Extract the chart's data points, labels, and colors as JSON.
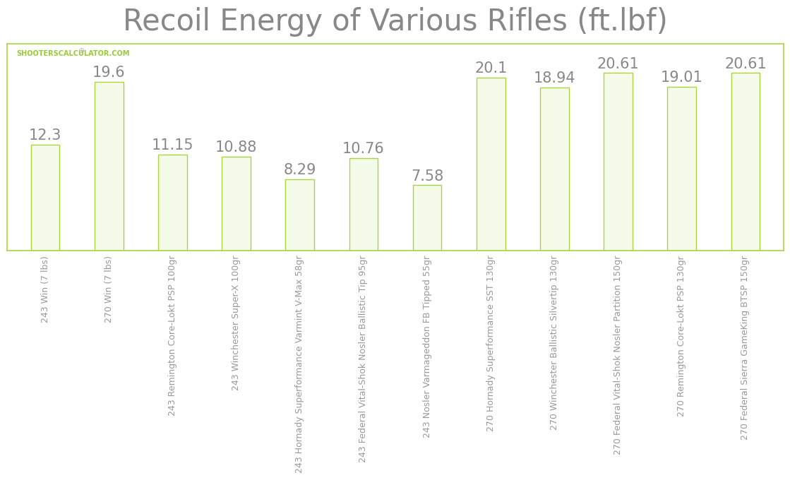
{
  "title": "Recoil Energy of Various Rifles (ft.lbf)",
  "categories": [
    "243 Win (7 lbs)",
    "270 Win (7 lbs)",
    "243 Remington Core-Lokt PSP 100gr",
    "243 Winchester Super-X 100gr",
    "243 Hornady Superformance Varmint V-Max 58gr",
    "243 Federal Vital-Shok Nosler Ballistic Tip 95gr",
    "243 Nosler Varmageddon FB Tipped 55gr",
    "270 Hornady Superformance SST 130gr",
    "270 Winchester Ballistic Silvertip 130gr",
    "270 Federal Vital-Shok Nosler Partition 150gr",
    "270 Remington Core-Lokt PSP 130gr",
    "270 Federal Sierra GameKing BTSP 150gr"
  ],
  "values": [
    12.3,
    19.6,
    11.15,
    10.88,
    8.29,
    10.76,
    7.58,
    20.1,
    18.94,
    20.61,
    19.01,
    20.61
  ],
  "bar_fill_color": "#f4fbe8",
  "bar_edge_color": "#aad440",
  "title_color": "#888888",
  "label_color": "#888888",
  "tick_label_color": "#999999",
  "watermark_text": "SHOOTERSCALCULATOR.COM",
  "watermark_color": "#99cc33",
  "background_color": "#ffffff",
  "plot_bg_color": "#ffffff",
  "border_color": "#aad440",
  "grid_color": "#dddddd",
  "title_fontsize": 30,
  "bar_label_fontsize": 15,
  "tick_label_fontsize": 9,
  "watermark_fontsize": 7,
  "ylim": [
    0,
    24
  ],
  "bar_width": 0.45
}
